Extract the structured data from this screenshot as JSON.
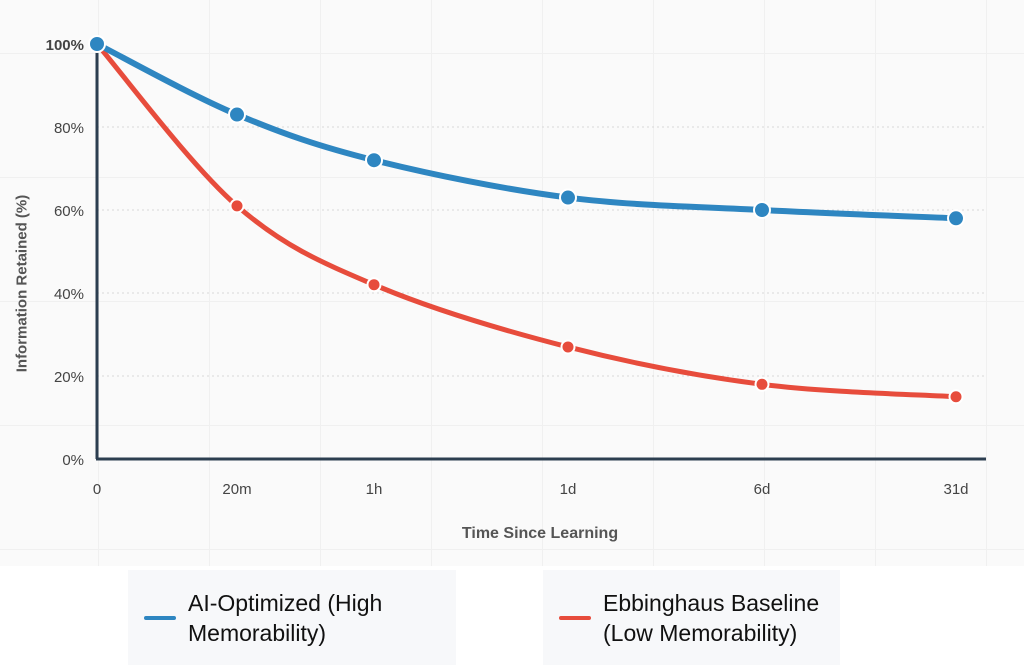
{
  "chart_data": {
    "type": "line",
    "title": "",
    "xlabel": "Time Since Learning",
    "ylabel": "Information Retained (%)",
    "categories": [
      "0",
      "20m",
      "1h",
      "1d",
      "6d",
      "31d"
    ],
    "y_ticks": [
      "0%",
      "20%",
      "40%",
      "60%",
      "80%",
      "100%"
    ],
    "ylim": [
      0,
      100
    ],
    "grid": true,
    "legend_placement": "bottom",
    "series": [
      {
        "name": "AI-Optimized (High Memorability)",
        "color": "#2e86c1",
        "values": [
          100,
          83,
          72,
          63,
          60,
          58
        ]
      },
      {
        "name": "Ebbinghaus Baseline (Low Memorability)",
        "color": "#e74c3c",
        "values": [
          100,
          61,
          42,
          27,
          18,
          15
        ]
      }
    ]
  }
}
